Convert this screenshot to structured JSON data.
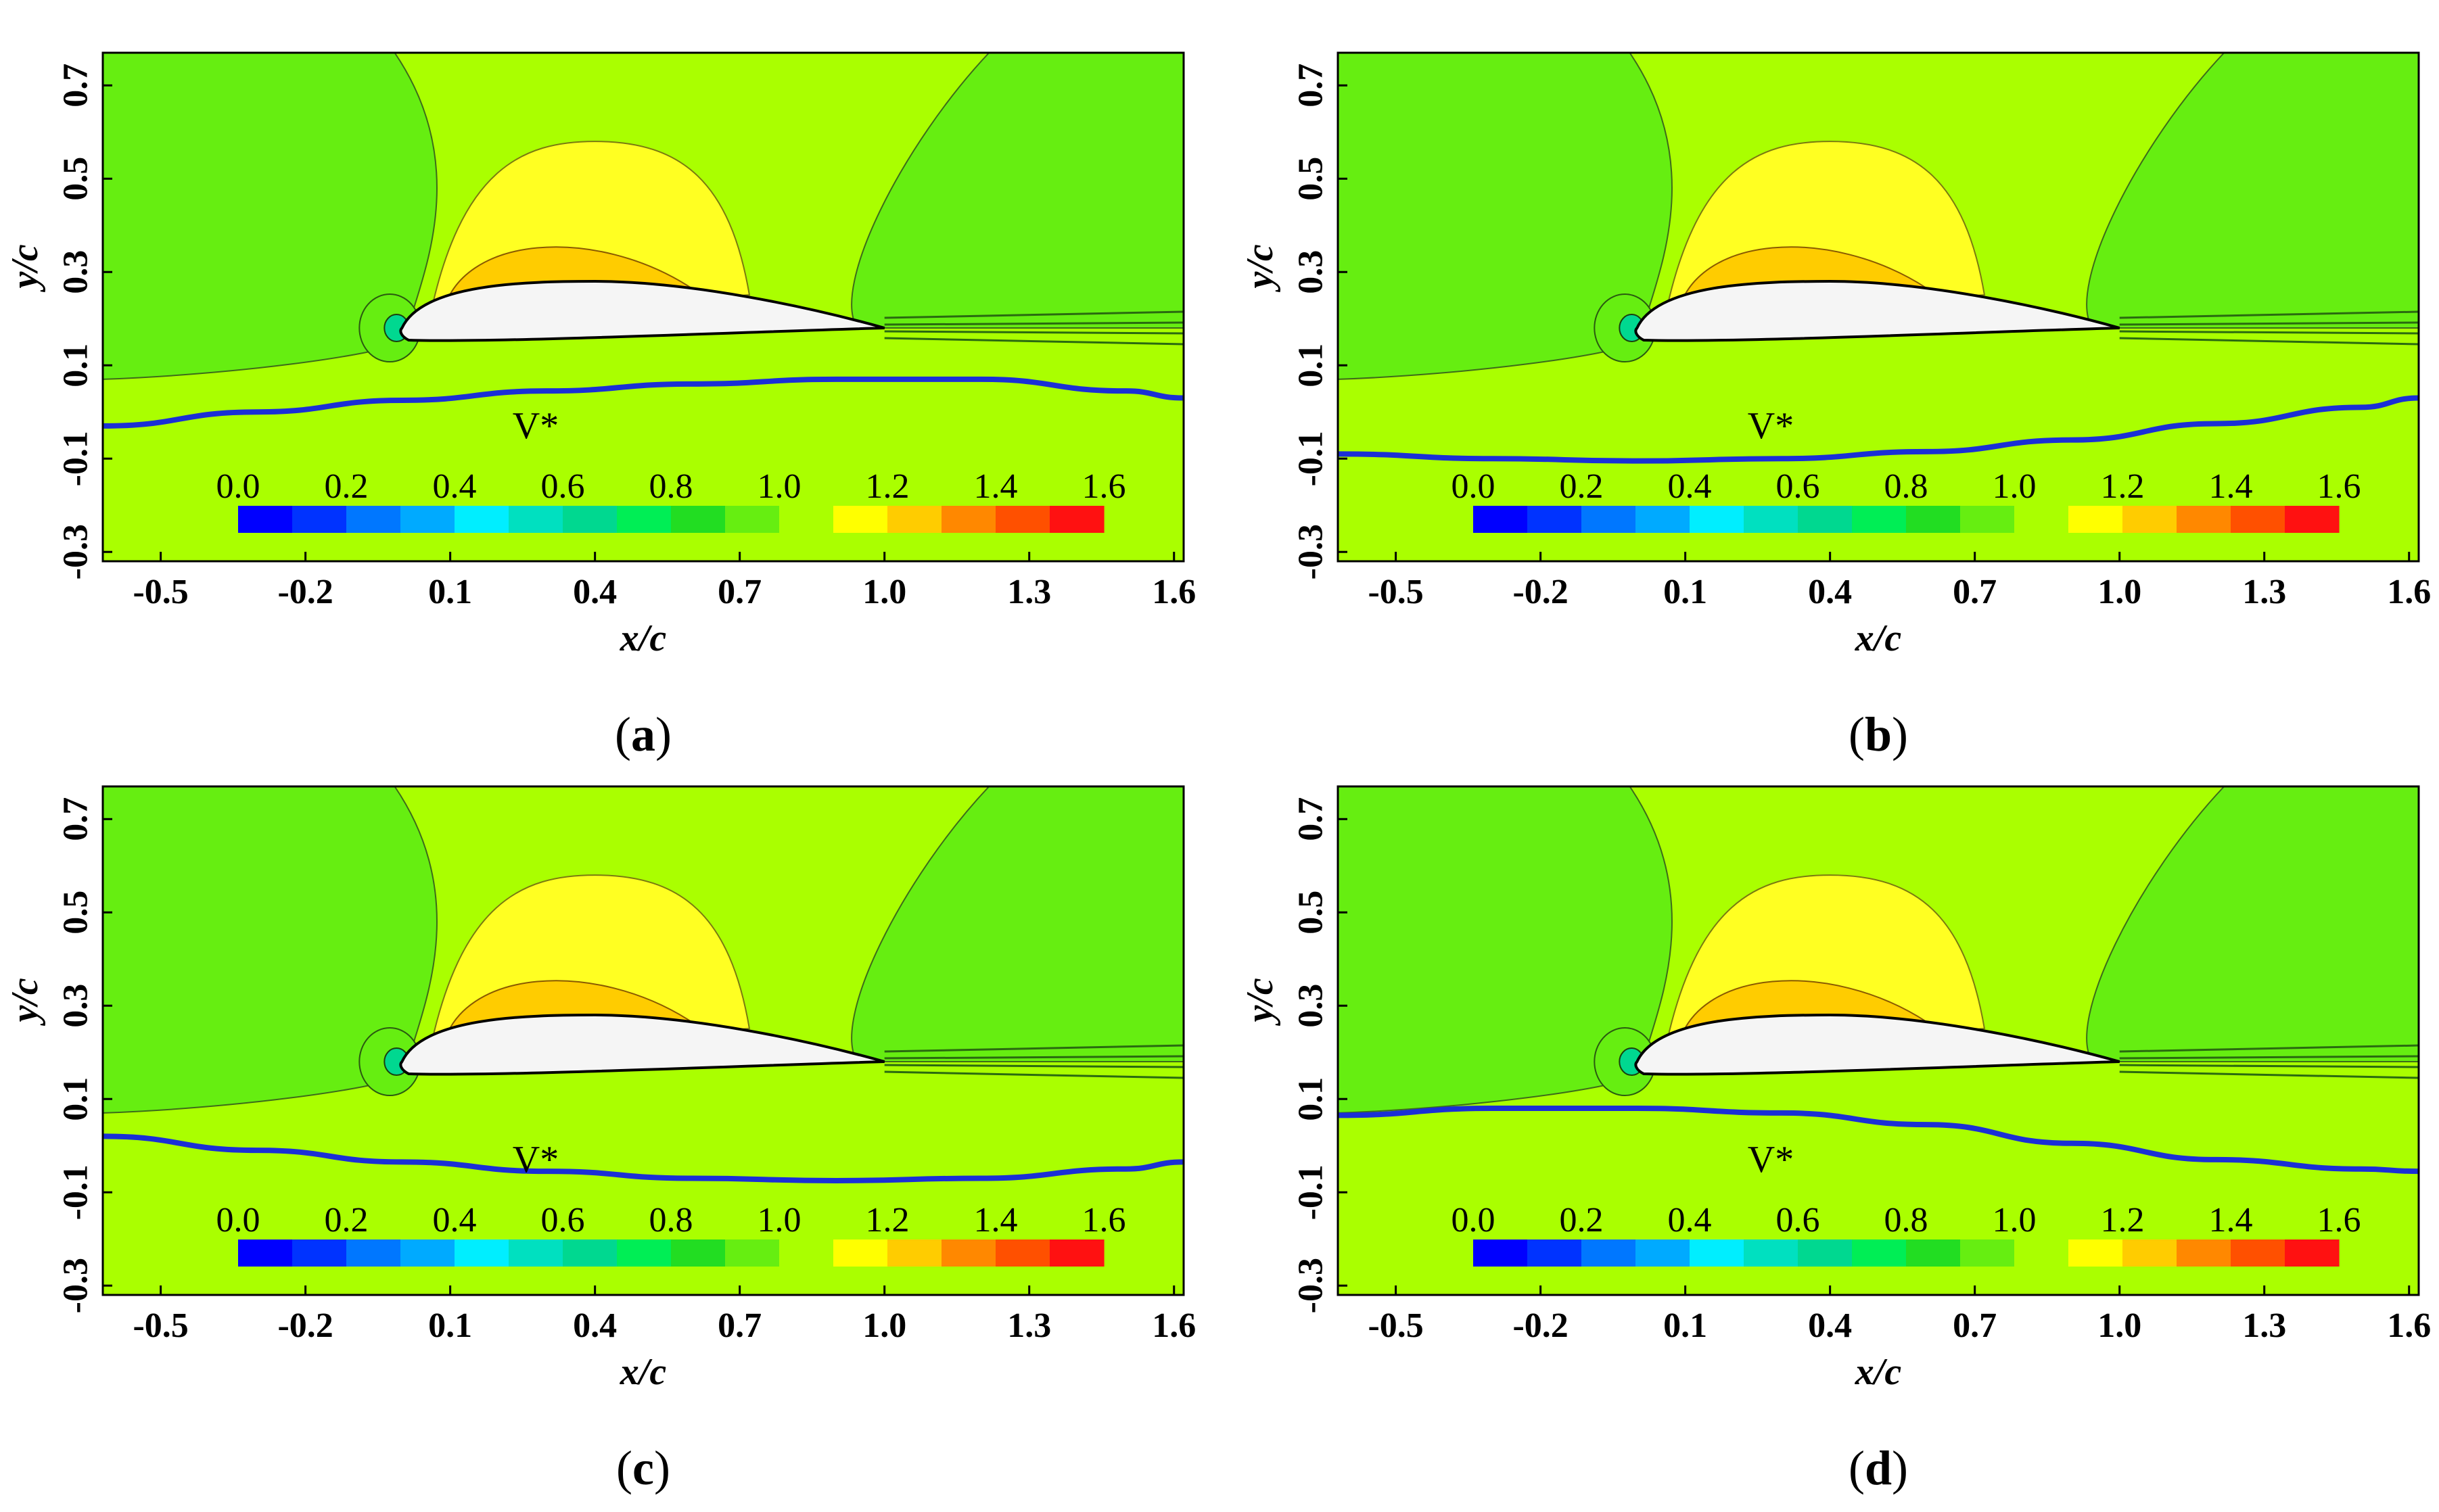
{
  "figure": {
    "colorbar": {
      "title": "V*",
      "ticks": [
        "0.0",
        "0.2",
        "0.4",
        "0.6",
        "0.8",
        "1.0",
        "1.2",
        "1.4",
        "1.6"
      ],
      "range": [
        0.0,
        1.6
      ],
      "levels": 16,
      "colors": [
        "#0000ff",
        "#0033ff",
        "#0077ff",
        "#00aaff",
        "#00eeff",
        "#00e0c0",
        "#00d890",
        "#00ee55",
        "#22dd22",
        "#66ee11",
        "#aaff00",
        "#ffff00",
        "#ffcc00",
        "#ff8800",
        "#ff5000",
        "#ff1111"
      ]
    },
    "colors": {
      "background": "#aaff00",
      "green_region": "#66ee11",
      "yellow_region": "#ffff22",
      "orange_region": "#ffcc00",
      "red_region": "#ff3300",
      "airfoil_fill": "#f5f5f5",
      "wall_line": "#1a2fd6"
    }
  },
  "chart_data": [
    {
      "type": "contour",
      "panel": "a",
      "caption_label": "a",
      "xlabel": "x/c",
      "ylabel": "y/c",
      "xlim": [
        -0.62,
        1.62
      ],
      "ylim": [
        -0.32,
        0.77
      ],
      "xticks": [
        "-0.5",
        "-0.2",
        "0.1",
        "0.4",
        "0.7",
        "1.0",
        "1.3",
        "1.6"
      ],
      "yticks": [
        "-0.3",
        "-0.1",
        "0.1",
        "0.3",
        "0.5",
        "0.7"
      ],
      "wall_profile": {
        "x": [
          -0.62,
          -0.3,
          0.0,
          0.3,
          0.6,
          0.9,
          1.2,
          1.5,
          1.62
        ],
        "y": [
          -0.03,
          0.0,
          0.025,
          0.045,
          0.06,
          0.07,
          0.07,
          0.045,
          0.03
        ]
      }
    },
    {
      "type": "contour",
      "panel": "b",
      "caption_label": "b",
      "xlabel": "x/c",
      "ylabel": "y/c",
      "xlim": [
        -0.62,
        1.62
      ],
      "ylim": [
        -0.32,
        0.77
      ],
      "xticks": [
        "-0.5",
        "-0.2",
        "0.1",
        "0.4",
        "0.7",
        "1.0",
        "1.3",
        "1.6"
      ],
      "yticks": [
        "-0.3",
        "-0.1",
        "0.1",
        "0.3",
        "0.5",
        "0.7"
      ],
      "wall_profile": {
        "x": [
          -0.62,
          -0.3,
          0.0,
          0.3,
          0.6,
          0.9,
          1.2,
          1.5,
          1.62
        ],
        "y": [
          -0.09,
          -0.1,
          -0.105,
          -0.1,
          -0.085,
          -0.06,
          -0.025,
          0.01,
          0.03
        ]
      }
    },
    {
      "type": "contour",
      "panel": "c",
      "caption_label": "c",
      "xlabel": "x/c",
      "ylabel": "y/c",
      "xlim": [
        -0.62,
        1.62
      ],
      "ylim": [
        -0.32,
        0.77
      ],
      "xticks": [
        "-0.5",
        "-0.2",
        "0.1",
        "0.4",
        "0.7",
        "1.0",
        "1.3",
        "1.6"
      ],
      "yticks": [
        "-0.3",
        "-0.1",
        "0.1",
        "0.3",
        "0.5",
        "0.7"
      ],
      "wall_profile": {
        "x": [
          -0.62,
          -0.3,
          0.0,
          0.3,
          0.6,
          0.9,
          1.2,
          1.5,
          1.62
        ],
        "y": [
          0.02,
          -0.01,
          -0.035,
          -0.055,
          -0.07,
          -0.075,
          -0.07,
          -0.05,
          -0.035
        ]
      }
    },
    {
      "type": "contour",
      "panel": "d",
      "caption_label": "d",
      "xlabel": "x/c",
      "ylabel": "y/c",
      "xlim": [
        -0.62,
        1.62
      ],
      "ylim": [
        -0.32,
        0.77
      ],
      "xticks": [
        "-0.5",
        "-0.2",
        "0.1",
        "0.4",
        "0.7",
        "1.0",
        "1.3",
        "1.6"
      ],
      "yticks": [
        "-0.3",
        "-0.1",
        "0.1",
        "0.3",
        "0.5",
        "0.7"
      ],
      "wall_profile": {
        "x": [
          -0.62,
          -0.3,
          0.0,
          0.3,
          0.6,
          0.9,
          1.2,
          1.5,
          1.62
        ],
        "y": [
          0.065,
          0.08,
          0.08,
          0.07,
          0.045,
          0.005,
          -0.03,
          -0.05,
          -0.055
        ]
      }
    }
  ]
}
